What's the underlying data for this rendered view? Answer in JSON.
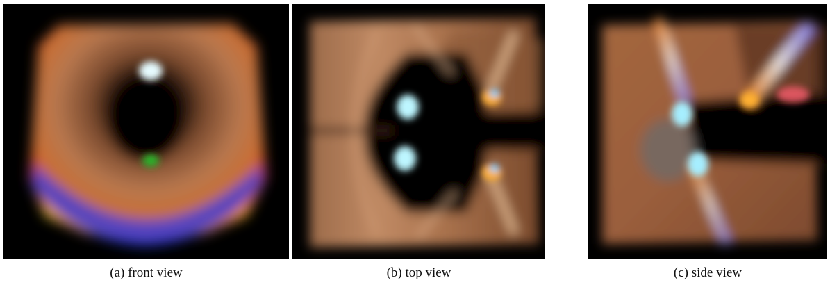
{
  "figure": {
    "panels": [
      {
        "id": "front",
        "caption": "(a) front view"
      },
      {
        "id": "top",
        "caption": "(b) top view"
      },
      {
        "id": "side",
        "caption": "(c) side view"
      }
    ]
  },
  "colors": {
    "background": "#000000",
    "tissue": "#b8784f",
    "highlight": "#d8f2f4",
    "rainbow": [
      "#ff2020",
      "#ffa020",
      "#40e040",
      "#2060ff",
      "#1020c0"
    ]
  }
}
